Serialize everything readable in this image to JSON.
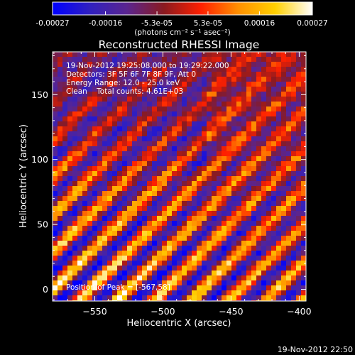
{
  "colorbar": {
    "tick_labels": [
      "-0.00027",
      "-0.00016",
      "-5.3e-05",
      "5.3e-05",
      "0.00016",
      "0.00027"
    ],
    "tick_values": [
      -0.00027,
      -0.00016,
      -5.3e-05,
      5.3e-05,
      0.00016,
      0.00027
    ],
    "units_label": "(photons cm⁻² s⁻¹ asec⁻²)",
    "range": [
      -0.00027,
      0.00027
    ],
    "stops": [
      "#0000ff",
      "#3020c0",
      "#5a2590",
      "#8a1a20",
      "#ff2000",
      "#ff9000",
      "#ffd000",
      "#ffffff"
    ]
  },
  "annotations": {
    "time_range": "19-Nov-2012 19:25:08.000 to 19:29:22.000",
    "detectors": "Detectors: 3F 5F 6F 7F 8F 9F, Att 0",
    "energy_range": "Energy Range: 12.0 - 25.0 keV",
    "clean_counts": "Clean    Total counts: 4.61E+03",
    "peak_position": "Position of Peak = [-567,58]",
    "footer_timestamp": "19-Nov-2012 22:50"
  },
  "chart_data": {
    "type": "heatmap",
    "title": "Reconstructed RHESSI Image",
    "xlabel": "Heliocentric X (arcsec)",
    "ylabel": "Heliocentric Y (arcsec)",
    "xlim": [
      -581,
      -395
    ],
    "ylim": [
      -9,
      183
    ],
    "x_ticks": [
      -550,
      -500,
      -450,
      -400
    ],
    "x_tick_labels": [
      "−550",
      "−500",
      "−450",
      "−400"
    ],
    "y_ticks": [
      0,
      50,
      100,
      150
    ],
    "y_tick_labels": [
      "0",
      "50",
      "100",
      "150"
    ],
    "grid": false,
    "peak": {
      "x": -567,
      "y": 58
    },
    "colormap": "RHESSI red-blue",
    "note": "Pixel values are diagonal striped backprojection pattern; intensity highest near lower-left."
  }
}
